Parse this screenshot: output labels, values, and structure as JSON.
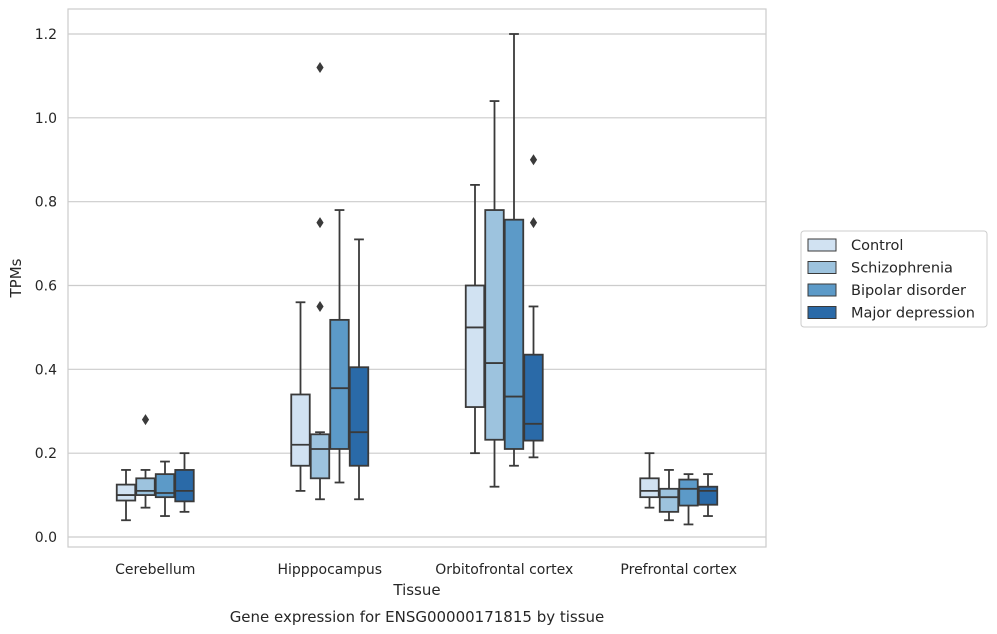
{
  "chart_data": {
    "type": "box",
    "title": "",
    "caption": "Gene expression for ENSG00000171815 by tissue",
    "xlabel": "Tissue",
    "ylabel": "TPMs",
    "ylim": [
      -0.025,
      1.26
    ],
    "yticks": [
      0.0,
      0.2,
      0.4,
      0.6,
      0.8,
      1.0,
      1.2
    ],
    "ytick_labels": [
      "0.0",
      "0.2",
      "0.4",
      "0.6",
      "0.8",
      "1.0",
      "1.2"
    ],
    "grid": "horizontal",
    "legend_position": "right",
    "categories": [
      "Cerebellum",
      "Hipppocampus",
      "Orbitofrontal cortex",
      "Prefrontal cortex"
    ],
    "series": [
      {
        "name": "Control",
        "color": "#d1e2f2",
        "boxes": [
          {
            "whisker_low": 0.04,
            "q1": 0.087,
            "median": 0.1,
            "q3": 0.125,
            "whisker_high": 0.16,
            "outliers": []
          },
          {
            "whisker_low": 0.11,
            "q1": 0.17,
            "median": 0.22,
            "q3": 0.34,
            "whisker_high": 0.56,
            "outliers": []
          },
          {
            "whisker_low": 0.2,
            "q1": 0.31,
            "median": 0.5,
            "q3": 0.6,
            "whisker_high": 0.84,
            "outliers": []
          },
          {
            "whisker_low": 0.07,
            "q1": 0.095,
            "median": 0.11,
            "q3": 0.14,
            "whisker_high": 0.2,
            "outliers": []
          }
        ]
      },
      {
        "name": "Schizophrenia",
        "color": "#9dc3de",
        "boxes": [
          {
            "whisker_low": 0.07,
            "q1": 0.1,
            "median": 0.11,
            "q3": 0.14,
            "whisker_high": 0.16,
            "outliers": [
              0.28
            ]
          },
          {
            "whisker_low": 0.09,
            "q1": 0.14,
            "median": 0.21,
            "q3": 0.245,
            "whisker_high": 0.25,
            "outliers": [
              0.55,
              0.75,
              1.12
            ]
          },
          {
            "whisker_low": 0.12,
            "q1": 0.232,
            "median": 0.415,
            "q3": 0.78,
            "whisker_high": 1.04,
            "outliers": []
          },
          {
            "whisker_low": 0.04,
            "q1": 0.06,
            "median": 0.095,
            "q3": 0.115,
            "whisker_high": 0.16,
            "outliers": []
          }
        ]
      },
      {
        "name": "Bipolar disorder",
        "color": "#5c9ac8",
        "boxes": [
          {
            "whisker_low": 0.05,
            "q1": 0.095,
            "median": 0.105,
            "q3": 0.15,
            "whisker_high": 0.18,
            "outliers": []
          },
          {
            "whisker_low": 0.13,
            "q1": 0.21,
            "median": 0.355,
            "q3": 0.518,
            "whisker_high": 0.78,
            "outliers": []
          },
          {
            "whisker_low": 0.17,
            "q1": 0.21,
            "median": 0.335,
            "q3": 0.757,
            "whisker_high": 1.2,
            "outliers": []
          },
          {
            "whisker_low": 0.03,
            "q1": 0.075,
            "median": 0.115,
            "q3": 0.137,
            "whisker_high": 0.15,
            "outliers": []
          }
        ]
      },
      {
        "name": "Major depression",
        "color": "#2a6aa8",
        "boxes": [
          {
            "whisker_low": 0.06,
            "q1": 0.085,
            "median": 0.11,
            "q3": 0.16,
            "whisker_high": 0.2,
            "outliers": []
          },
          {
            "whisker_low": 0.09,
            "q1": 0.17,
            "median": 0.25,
            "q3": 0.405,
            "whisker_high": 0.71,
            "outliers": []
          },
          {
            "whisker_low": 0.19,
            "q1": 0.23,
            "median": 0.27,
            "q3": 0.435,
            "whisker_high": 0.55,
            "outliers": [
              0.75,
              0.9
            ]
          },
          {
            "whisker_low": 0.05,
            "q1": 0.077,
            "median": 0.11,
            "q3": 0.12,
            "whisker_high": 0.15,
            "outliers": []
          }
        ]
      }
    ]
  }
}
